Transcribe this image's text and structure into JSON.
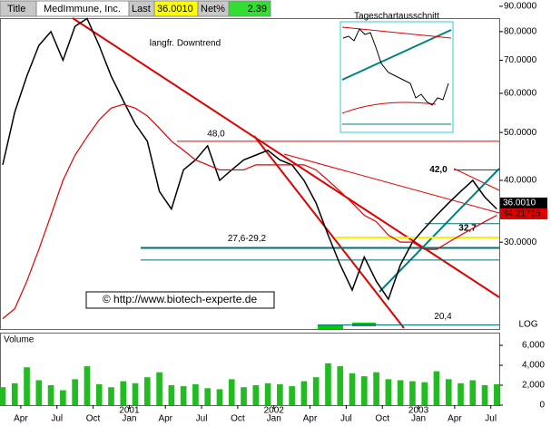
{
  "header": {
    "title_label": "Title",
    "name": "MedImmune, Inc.",
    "last_label": "Last",
    "last": "36.0010",
    "net_label": "Net%",
    "net": "2.39"
  },
  "chart_data": {
    "type": "line",
    "log": true,
    "log_label": "LOG",
    "x": [
      0.5,
      1.5,
      2.5,
      3.5,
      4.5,
      5.5,
      6.5,
      7.5,
      8.5,
      9.5,
      10.5,
      11.5,
      12.5,
      13.5,
      14.5,
      15.5,
      16.5,
      17.5,
      18.5,
      19.5,
      20.5,
      21.5,
      22.5,
      23.5,
      24.5,
      25.5,
      26.5,
      27.5,
      28.5,
      29.5,
      30.5,
      31.5,
      32.5,
      33.5,
      34.5,
      35.5,
      36.5,
      37.5,
      38.5,
      39.5,
      40.5,
      41.5
    ],
    "xlim": [
      0.35,
      41.7
    ],
    "xticks": [
      {
        "value": 2,
        "label": "Apr"
      },
      {
        "value": 5,
        "label": "Jul"
      },
      {
        "value": 8,
        "label": "Oct"
      },
      {
        "value": 11,
        "label": "Jan"
      },
      {
        "value": 14,
        "label": "Apr"
      },
      {
        "value": 17,
        "label": "Jul"
      },
      {
        "value": 20,
        "label": "Oct"
      },
      {
        "value": 23,
        "label": "Jan"
      },
      {
        "value": 26,
        "label": "Apr"
      },
      {
        "value": 29,
        "label": "Jul"
      },
      {
        "value": 32,
        "label": "Oct"
      },
      {
        "value": 35,
        "label": "Jan"
      },
      {
        "value": 38,
        "label": "Apr"
      },
      {
        "value": 41,
        "label": "Jul"
      }
    ],
    "year_labels": [
      {
        "value": 11,
        "label": "2001"
      },
      {
        "value": 23,
        "label": "2002"
      },
      {
        "value": 35,
        "label": "2003"
      }
    ],
    "series": [
      {
        "color": "#000000",
        "values": [
          43,
          55,
          65,
          75,
          80,
          70,
          82,
          85,
          75,
          65,
          58,
          52,
          48,
          38,
          35,
          42,
          44,
          47,
          40,
          42,
          44,
          45,
          46,
          44,
          43,
          40,
          36,
          31,
          27,
          24,
          28,
          25,
          23,
          27,
          30,
          32,
          34,
          36,
          38,
          40,
          37,
          35
        ]
      },
      {
        "color": "#e00000",
        "values": [
          21,
          22,
          25,
          29,
          34,
          40,
          45,
          49,
          53,
          56,
          57,
          56,
          54,
          51,
          48,
          46,
          44,
          43,
          42,
          42,
          42,
          43,
          43,
          43,
          43,
          43,
          42,
          40,
          38,
          36,
          34,
          33,
          31,
          30,
          30,
          29,
          29,
          30,
          31,
          32,
          33,
          34
        ]
      }
    ],
    "ylim": [
      20.1,
      91.9
    ],
    "yticks": [
      {
        "value": 90,
        "label": "90.0000"
      },
      {
        "value": 80,
        "label": "80.0000"
      },
      {
        "value": 70,
        "label": "70.0000"
      },
      {
        "value": 60,
        "label": "60.0000"
      },
      {
        "value": 50,
        "label": "50.0000"
      },
      {
        "value": 40,
        "label": "40.0000"
      },
      {
        "value": 30,
        "label": "30.0000"
      }
    ],
    "last_price": {
      "value": 36.001,
      "label": "36.0010"
    },
    "ma_last": {
      "value": 34.21715,
      "label": "34.21715"
    },
    "levels": [
      {
        "values": [
          48
        ],
        "label": "48,0",
        "color": "#e00000"
      },
      {
        "values": [
          27.6,
          29.2
        ],
        "label": "27,6-29,2",
        "color": "#007070"
      },
      {
        "values": [
          20.4
        ],
        "label": "20,4",
        "color": "#007070"
      },
      {
        "values": [
          42
        ],
        "label": "42,0",
        "color": "#e00000"
      },
      {
        "values": [
          32.7
        ],
        "label": "32,7",
        "color": "#007070"
      }
    ],
    "annotations": [
      "langfr. Downtrend",
      "© http://www.biotech-experte.de",
      "Tageschartausschnitt"
    ],
    "volume": {
      "label": "Volume",
      "color": "#22bb22",
      "values": [
        1800,
        2200,
        3800,
        2500,
        2000,
        1500,
        2600,
        3900,
        2100,
        1800,
        2400,
        2200,
        2800,
        3300,
        2000,
        1900,
        2100,
        1700,
        1600,
        2600,
        1800,
        2000,
        2200,
        2100,
        1900,
        2400,
        2800,
        4200,
        3900,
        3200,
        2900,
        3300,
        2600,
        2500,
        2400,
        2300,
        3400,
        2600,
        2200,
        2500,
        2000,
        2100
      ],
      "ylim": [
        0,
        7000
      ],
      "yticks": [
        0,
        {
          "value": 2000,
          "label": "2,000"
        },
        {
          "value": 4000,
          "label": "4,000"
        },
        {
          "value": 6000,
          "label": "6,000"
        }
      ]
    }
  }
}
